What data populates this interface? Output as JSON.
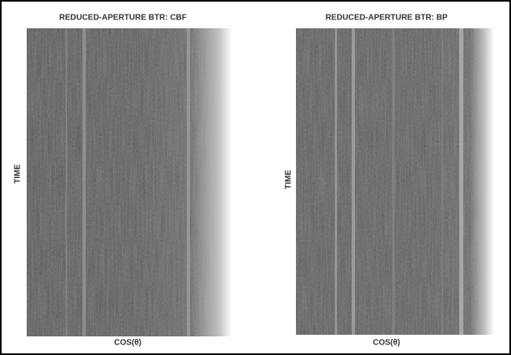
{
  "panels": [
    {
      "title": "REDUCED-APERTURE BTR:  CBF",
      "y_label": "TIME",
      "x_label": "COS(θ)"
    },
    {
      "title": "REDUCED-APERTURE BTR:  BP",
      "y_label": "TIME",
      "x_label": "COS(θ)"
    }
  ]
}
